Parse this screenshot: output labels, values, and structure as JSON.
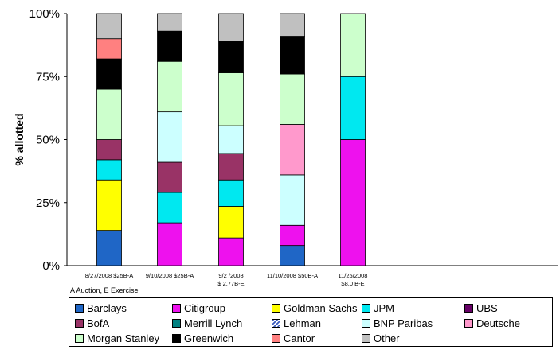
{
  "chart_data": {
    "type": "bar",
    "stacked": true,
    "ylabel": "% allotted",
    "ylim": [
      0,
      100
    ],
    "yticks": [
      "0%",
      "25%",
      "50%",
      "75%",
      "100%"
    ],
    "categories": [
      [
        "8/27/2008 $25B-A"
      ],
      [
        "9/10/2008 $25B-A"
      ],
      [
        "9/2 /2008",
        "$ 2.77B-E"
      ],
      [
        "11/10/2008 $50B-A"
      ],
      [
        "11/25/2008",
        "$8.0   B-E"
      ]
    ],
    "series": [
      {
        "name": "Barclays",
        "color": "#1f66c6",
        "values": [
          14,
          0,
          0,
          8,
          0
        ]
      },
      {
        "name": "Citigroup",
        "color": "#ee11ee",
        "values": [
          0,
          17,
          11,
          8,
          50
        ]
      },
      {
        "name": "Goldman Sachs",
        "color": "#ffff00",
        "values": [
          20,
          0,
          12.5,
          0,
          0
        ]
      },
      {
        "name": "JPM",
        "color": "#00e8f0",
        "values": [
          8,
          12,
          10.5,
          0,
          25
        ]
      },
      {
        "name": "UBS",
        "color": "#660066",
        "values": [
          0,
          0,
          0,
          0,
          0
        ]
      },
      {
        "name": "BofA",
        "color": "#993366",
        "values": [
          8,
          12,
          10.5,
          0,
          0
        ]
      },
      {
        "name": "Merrill Lynch",
        "color": "#008080",
        "values": [
          0,
          0,
          0,
          0,
          0
        ]
      },
      {
        "name": "Lehman",
        "color": "#3b5bbf",
        "values": [
          0,
          0,
          0,
          0,
          0
        ],
        "pattern": "hatch"
      },
      {
        "name": "BNP Paribas",
        "color": "#ccffff",
        "values": [
          0,
          20,
          11,
          20,
          0
        ]
      },
      {
        "name": "Deutsche",
        "color": "#ff99cc",
        "values": [
          0,
          0,
          0,
          20,
          0
        ]
      },
      {
        "name": "Morgan Stanley",
        "color": "#ccffcc",
        "values": [
          20,
          20,
          21,
          20,
          25
        ]
      },
      {
        "name": "Greenwich",
        "color": "#000000",
        "values": [
          12,
          12,
          12.5,
          15,
          0
        ]
      },
      {
        "name": "Cantor",
        "color": "#ff8080",
        "values": [
          8,
          0,
          0,
          0,
          0
        ]
      },
      {
        "name": "Other",
        "color": "#c0c0c0",
        "values": [
          10,
          7,
          11,
          9,
          0
        ]
      }
    ],
    "grid": false,
    "legend_position": "bottom"
  },
  "note": "A  Auction, E  Exercise"
}
